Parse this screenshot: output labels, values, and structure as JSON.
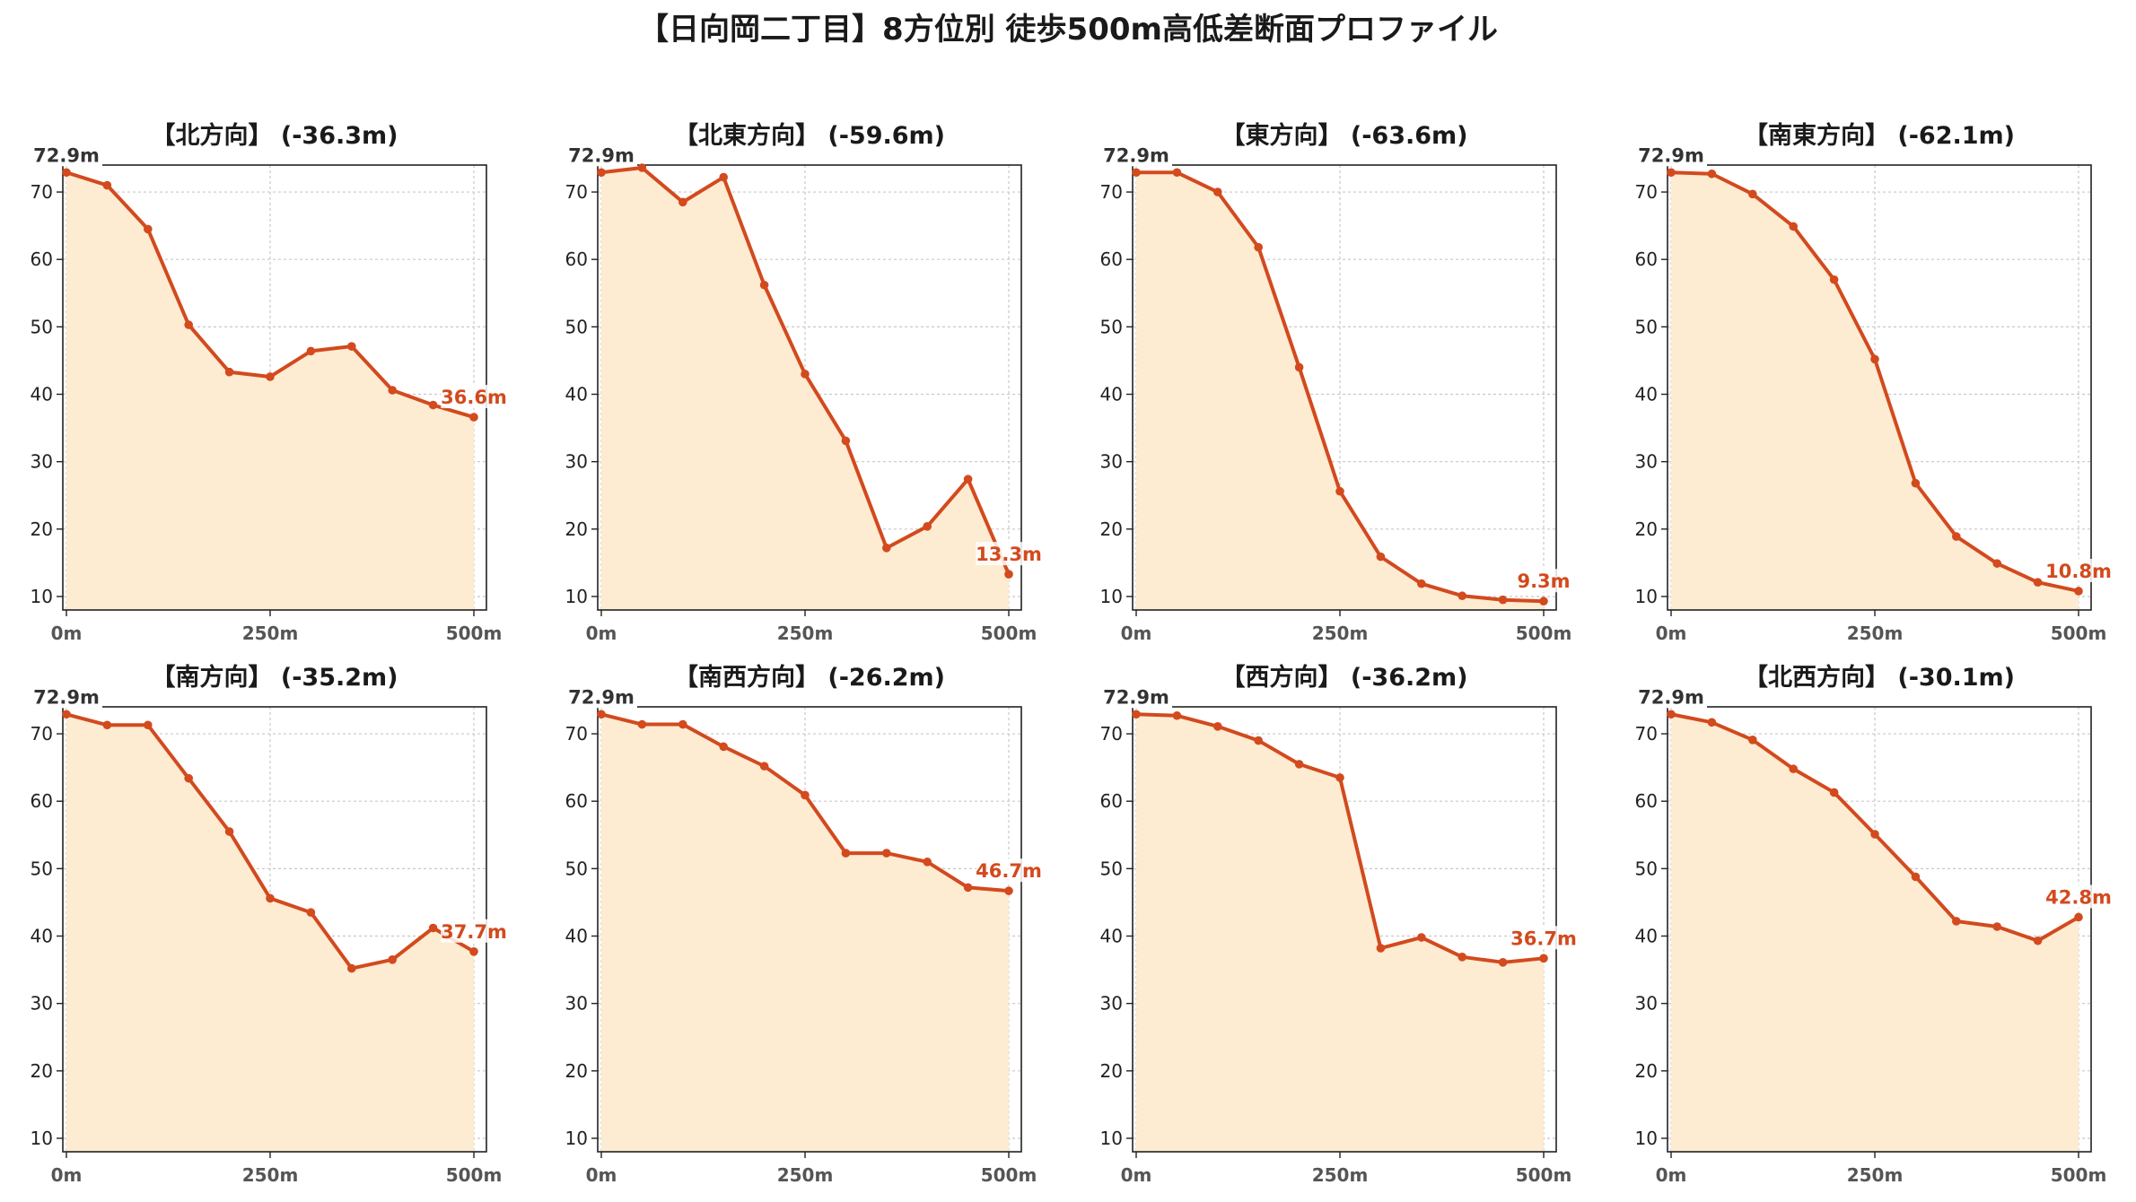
{
  "title": "【日向岡二丁目】8方位別 徒歩500m高低差断面プロファイル",
  "colors": {
    "line": "#d24a1e",
    "fill": "#fdebd2",
    "grid": "#c8c8c8"
  },
  "chart_data": [
    {
      "type": "area",
      "title": "【北方向】 (-36.3m)",
      "x": [
        0,
        50,
        100,
        150,
        200,
        250,
        300,
        350,
        400,
        450,
        500
      ],
      "y": [
        72.9,
        71.0,
        64.5,
        50.3,
        43.3,
        42.6,
        46.4,
        47.1,
        40.6,
        38.4,
        36.6
      ],
      "start_label": "72.9m",
      "end_label": "36.6m",
      "xticks": [
        "0m",
        "250m",
        "500m"
      ],
      "yticks": [
        10,
        20,
        30,
        40,
        50,
        60,
        70
      ],
      "xlim": [
        0,
        500
      ],
      "ylim": [
        8,
        74
      ],
      "grid": true
    },
    {
      "type": "area",
      "title": "【北東方向】 (-59.6m)",
      "x": [
        0,
        50,
        100,
        150,
        200,
        250,
        300,
        350,
        400,
        450,
        500
      ],
      "y": [
        72.9,
        73.6,
        68.5,
        72.2,
        56.2,
        43.0,
        33.1,
        17.2,
        20.4,
        27.4,
        13.3
      ],
      "start_label": "72.9m",
      "end_label": "13.3m",
      "xticks": [
        "0m",
        "250m",
        "500m"
      ],
      "yticks": [
        10,
        20,
        30,
        40,
        50,
        60,
        70
      ],
      "xlim": [
        0,
        500
      ],
      "ylim": [
        8,
        74
      ],
      "grid": true
    },
    {
      "type": "area",
      "title": "【東方向】 (-63.6m)",
      "x": [
        0,
        50,
        100,
        150,
        200,
        250,
        300,
        350,
        400,
        450,
        500
      ],
      "y": [
        72.9,
        72.9,
        70.0,
        61.8,
        44.0,
        25.6,
        15.9,
        11.9,
        10.1,
        9.5,
        9.3
      ],
      "start_label": "72.9m",
      "end_label": "9.3m",
      "xticks": [
        "0m",
        "250m",
        "500m"
      ],
      "yticks": [
        10,
        20,
        30,
        40,
        50,
        60,
        70
      ],
      "xlim": [
        0,
        500
      ],
      "ylim": [
        8,
        74
      ],
      "grid": true
    },
    {
      "type": "area",
      "title": "【南東方向】 (-62.1m)",
      "x": [
        0,
        50,
        100,
        150,
        200,
        250,
        300,
        350,
        400,
        450,
        500
      ],
      "y": [
        72.9,
        72.7,
        69.7,
        64.9,
        57.0,
        45.2,
        26.8,
        18.9,
        14.9,
        12.1,
        10.8
      ],
      "start_label": "72.9m",
      "end_label": "10.8m",
      "xticks": [
        "0m",
        "250m",
        "500m"
      ],
      "yticks": [
        10,
        20,
        30,
        40,
        50,
        60,
        70
      ],
      "xlim": [
        0,
        500
      ],
      "ylim": [
        8,
        74
      ],
      "grid": true
    },
    {
      "type": "area",
      "title": "【南方向】 (-35.2m)",
      "x": [
        0,
        50,
        100,
        150,
        200,
        250,
        300,
        350,
        400,
        450,
        500
      ],
      "y": [
        72.9,
        71.3,
        71.3,
        63.4,
        55.5,
        45.6,
        43.5,
        35.2,
        36.5,
        41.2,
        37.7
      ],
      "start_label": "72.9m",
      "end_label": "37.7m",
      "xticks": [
        "0m",
        "250m",
        "500m"
      ],
      "yticks": [
        10,
        20,
        30,
        40,
        50,
        60,
        70
      ],
      "xlim": [
        0,
        500
      ],
      "ylim": [
        8,
        74
      ],
      "grid": true
    },
    {
      "type": "area",
      "title": "【南西方向】 (-26.2m)",
      "x": [
        0,
        50,
        100,
        150,
        200,
        250,
        300,
        350,
        400,
        450,
        500
      ],
      "y": [
        72.9,
        71.4,
        71.4,
        68.1,
        65.2,
        60.9,
        52.3,
        52.3,
        51.0,
        47.2,
        46.7
      ],
      "start_label": "72.9m",
      "end_label": "46.7m",
      "xticks": [
        "0m",
        "250m",
        "500m"
      ],
      "yticks": [
        10,
        20,
        30,
        40,
        50,
        60,
        70
      ],
      "xlim": [
        0,
        500
      ],
      "ylim": [
        8,
        74
      ],
      "grid": true
    },
    {
      "type": "area",
      "title": "【西方向】 (-36.2m)",
      "x": [
        0,
        50,
        100,
        150,
        200,
        250,
        300,
        350,
        400,
        450,
        500
      ],
      "y": [
        72.9,
        72.7,
        71.1,
        69.0,
        65.5,
        63.5,
        38.2,
        39.8,
        36.9,
        36.1,
        36.7
      ],
      "start_label": "72.9m",
      "end_label": "36.7m",
      "xticks": [
        "0m",
        "250m",
        "500m"
      ],
      "yticks": [
        10,
        20,
        30,
        40,
        50,
        60,
        70
      ],
      "xlim": [
        0,
        500
      ],
      "ylim": [
        8,
        74
      ],
      "grid": true
    },
    {
      "type": "area",
      "title": "【北西方向】 (-30.1m)",
      "x": [
        0,
        50,
        100,
        150,
        200,
        250,
        300,
        350,
        400,
        450,
        500
      ],
      "y": [
        72.9,
        71.7,
        69.1,
        64.8,
        61.3,
        55.1,
        48.8,
        42.2,
        41.4,
        39.3,
        42.8
      ],
      "start_label": "72.9m",
      "end_label": "42.8m",
      "xticks": [
        "0m",
        "250m",
        "500m"
      ],
      "yticks": [
        10,
        20,
        30,
        40,
        50,
        60,
        70
      ],
      "xlim": [
        0,
        500
      ],
      "ylim": [
        8,
        74
      ],
      "grid": true
    }
  ]
}
